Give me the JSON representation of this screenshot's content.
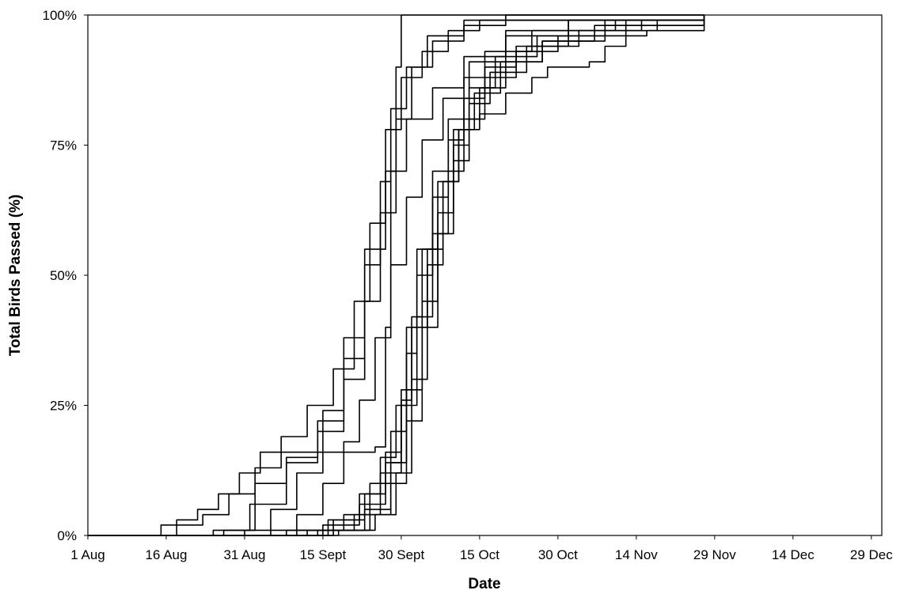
{
  "chart_data": {
    "type": "line",
    "title": "",
    "xlabel": "Date",
    "ylabel": "Total Birds Passed (%)",
    "x_type": "date",
    "xlim": [
      "2000-08-01",
      "2000-12-31"
    ],
    "ylim": [
      0,
      100
    ],
    "x_ticks": [
      {
        "date": "2000-08-01",
        "label": "1 Aug"
      },
      {
        "date": "2000-08-16",
        "label": "16 Aug"
      },
      {
        "date": "2000-08-31",
        "label": "31 Aug"
      },
      {
        "date": "2000-09-15",
        "label": "15 Sept"
      },
      {
        "date": "2000-09-30",
        "label": "30 Sept"
      },
      {
        "date": "2000-10-15",
        "label": "15 Oct"
      },
      {
        "date": "2000-10-30",
        "label": "30 Oct"
      },
      {
        "date": "2000-11-14",
        "label": "14 Nov"
      },
      {
        "date": "2000-11-29",
        "label": "29 Nov"
      },
      {
        "date": "2000-12-14",
        "label": "14 Dec"
      },
      {
        "date": "2000-12-29",
        "label": "29 Dec"
      }
    ],
    "y_ticks": [
      {
        "value": 0,
        "label": "0%"
      },
      {
        "value": 25,
        "label": "25%"
      },
      {
        "value": 50,
        "label": "50%"
      },
      {
        "value": 75,
        "label": "75%"
      },
      {
        "value": 100,
        "label": "100%"
      }
    ],
    "grid": false,
    "legend": "none",
    "series_color": "#000000",
    "series": [
      {
        "points": [
          [
            "2000-08-13",
            0
          ],
          [
            "2000-08-15",
            2
          ],
          [
            "2000-08-18",
            3
          ],
          [
            "2000-08-22",
            5
          ],
          [
            "2000-08-26",
            8
          ],
          [
            "2000-08-30",
            12
          ],
          [
            "2000-09-03",
            16
          ],
          [
            "2000-09-08",
            16
          ],
          [
            "2000-09-14",
            16
          ],
          [
            "2000-09-20",
            16
          ],
          [
            "2000-09-25",
            17
          ],
          [
            "2000-09-27",
            40
          ],
          [
            "2000-09-28",
            70
          ],
          [
            "2000-09-29",
            90
          ],
          [
            "2000-09-30",
            100
          ],
          [
            "2000-11-27",
            100
          ]
        ]
      },
      {
        "points": [
          [
            "2000-08-14",
            0
          ],
          [
            "2000-08-18",
            2
          ],
          [
            "2000-08-23",
            4
          ],
          [
            "2000-08-28",
            8
          ],
          [
            "2000-09-02",
            13
          ],
          [
            "2000-09-07",
            19
          ],
          [
            "2000-09-12",
            25
          ],
          [
            "2000-09-17",
            32
          ],
          [
            "2000-09-21",
            45
          ],
          [
            "2000-09-24",
            60
          ],
          [
            "2000-09-27",
            78
          ],
          [
            "2000-09-30",
            88
          ],
          [
            "2000-10-04",
            93
          ],
          [
            "2000-10-09",
            97
          ],
          [
            "2000-10-15",
            99
          ],
          [
            "2000-11-27",
            100
          ]
        ]
      },
      {
        "points": [
          [
            "2000-08-20",
            0
          ],
          [
            "2000-08-27",
            1
          ],
          [
            "2000-09-02",
            10
          ],
          [
            "2000-09-08",
            15
          ],
          [
            "2000-09-14",
            20
          ],
          [
            "2000-09-19",
            30
          ],
          [
            "2000-09-23",
            45
          ],
          [
            "2000-09-26",
            62
          ],
          [
            "2000-09-29",
            80
          ],
          [
            "2000-10-02",
            90
          ],
          [
            "2000-10-06",
            95
          ],
          [
            "2000-10-12",
            98
          ],
          [
            "2000-10-20",
            100
          ],
          [
            "2000-11-27",
            100
          ]
        ]
      },
      {
        "points": [
          [
            "2000-08-18",
            0
          ],
          [
            "2000-08-25",
            1
          ],
          [
            "2000-09-01",
            6
          ],
          [
            "2000-09-08",
            14
          ],
          [
            "2000-09-14",
            22
          ],
          [
            "2000-09-19",
            34
          ],
          [
            "2000-09-23",
            52
          ],
          [
            "2000-09-26",
            68
          ],
          [
            "2000-09-28",
            82
          ],
          [
            "2000-10-01",
            90
          ],
          [
            "2000-10-05",
            96
          ],
          [
            "2000-10-12",
            99
          ],
          [
            "2000-11-27",
            100
          ]
        ]
      },
      {
        "points": [
          [
            "2000-08-25",
            0
          ],
          [
            "2000-08-31",
            1
          ],
          [
            "2000-09-05",
            5
          ],
          [
            "2000-09-10",
            12
          ],
          [
            "2000-09-15",
            24
          ],
          [
            "2000-09-19",
            38
          ],
          [
            "2000-09-23",
            55
          ],
          [
            "2000-09-27",
            70
          ],
          [
            "2000-10-01",
            80
          ],
          [
            "2000-10-06",
            86
          ],
          [
            "2000-10-12",
            92
          ],
          [
            "2000-10-20",
            97
          ],
          [
            "2000-11-01",
            99
          ],
          [
            "2000-11-27",
            100
          ]
        ]
      },
      {
        "points": [
          [
            "2000-08-28",
            0
          ],
          [
            "2000-09-05",
            1
          ],
          [
            "2000-09-10",
            4
          ],
          [
            "2000-09-15",
            10
          ],
          [
            "2000-09-19",
            18
          ],
          [
            "2000-09-22",
            26
          ],
          [
            "2000-09-25",
            38
          ],
          [
            "2000-09-28",
            52
          ],
          [
            "2000-10-01",
            65
          ],
          [
            "2000-10-04",
            76
          ],
          [
            "2000-10-08",
            84
          ],
          [
            "2000-10-13",
            91
          ],
          [
            "2000-10-20",
            96
          ],
          [
            "2000-11-01",
            99
          ],
          [
            "2000-11-27",
            100
          ]
        ]
      },
      {
        "points": [
          [
            "2000-08-28",
            0
          ],
          [
            "2000-09-08",
            1
          ],
          [
            "2000-09-16",
            3
          ],
          [
            "2000-09-22",
            8
          ],
          [
            "2000-09-26",
            15
          ],
          [
            "2000-09-29",
            25
          ],
          [
            "2000-10-01",
            40
          ],
          [
            "2000-10-03",
            55
          ],
          [
            "2000-10-06",
            70
          ],
          [
            "2000-10-09",
            80
          ],
          [
            "2000-10-12",
            88
          ],
          [
            "2000-10-16",
            93
          ],
          [
            "2000-10-25",
            97
          ],
          [
            "2000-11-10",
            99
          ],
          [
            "2000-11-27",
            100
          ]
        ]
      },
      {
        "points": [
          [
            "2000-08-30",
            0
          ],
          [
            "2000-09-10",
            1
          ],
          [
            "2000-09-17",
            3
          ],
          [
            "2000-09-23",
            8
          ],
          [
            "2000-09-27",
            16
          ],
          [
            "2000-09-30",
            28
          ],
          [
            "2000-10-02",
            42
          ],
          [
            "2000-10-04",
            55
          ],
          [
            "2000-10-07",
            68
          ],
          [
            "2000-10-10",
            78
          ],
          [
            "2000-10-13",
            86
          ],
          [
            "2000-10-18",
            92
          ],
          [
            "2000-10-26",
            96
          ],
          [
            "2000-11-08",
            99
          ],
          [
            "2000-11-27",
            100
          ]
        ]
      },
      {
        "points": [
          [
            "2000-09-01",
            0
          ],
          [
            "2000-09-12",
            1
          ],
          [
            "2000-09-19",
            4
          ],
          [
            "2000-09-24",
            10
          ],
          [
            "2000-09-28",
            20
          ],
          [
            "2000-10-01",
            35
          ],
          [
            "2000-10-03",
            50
          ],
          [
            "2000-10-06",
            65
          ],
          [
            "2000-10-09",
            76
          ],
          [
            "2000-10-12",
            84
          ],
          [
            "2000-10-16",
            90
          ],
          [
            "2000-10-22",
            94
          ],
          [
            "2000-11-01",
            97
          ],
          [
            "2000-11-15",
            99
          ],
          [
            "2000-11-27",
            100
          ]
        ]
      },
      {
        "points": [
          [
            "2000-09-02",
            0
          ],
          [
            "2000-09-14",
            1
          ],
          [
            "2000-09-21",
            4
          ],
          [
            "2000-09-26",
            12
          ],
          [
            "2000-09-30",
            25
          ],
          [
            "2000-10-03",
            42
          ],
          [
            "2000-10-06",
            58
          ],
          [
            "2000-10-09",
            70
          ],
          [
            "2000-10-12",
            80
          ],
          [
            "2000-10-16",
            88
          ],
          [
            "2000-10-22",
            93
          ],
          [
            "2000-10-30",
            96
          ],
          [
            "2000-11-12",
            99
          ],
          [
            "2000-11-27",
            100
          ]
        ]
      },
      {
        "points": [
          [
            "2000-09-03",
            0
          ],
          [
            "2000-09-15",
            2
          ],
          [
            "2000-09-22",
            6
          ],
          [
            "2000-09-27",
            14
          ],
          [
            "2000-09-30",
            26
          ],
          [
            "2000-10-02",
            40
          ],
          [
            "2000-10-05",
            55
          ],
          [
            "2000-10-08",
            68
          ],
          [
            "2000-10-11",
            78
          ],
          [
            "2000-10-14",
            85
          ],
          [
            "2000-10-19",
            91
          ],
          [
            "2000-10-27",
            95
          ],
          [
            "2000-11-08",
            98
          ],
          [
            "2000-11-27",
            100
          ]
        ]
      },
      {
        "points": [
          [
            "2000-09-04",
            0
          ],
          [
            "2000-09-16",
            1
          ],
          [
            "2000-09-23",
            5
          ],
          [
            "2000-09-28",
            14
          ],
          [
            "2000-10-01",
            28
          ],
          [
            "2000-10-04",
            45
          ],
          [
            "2000-10-07",
            62
          ],
          [
            "2000-10-10",
            75
          ],
          [
            "2000-10-13",
            83
          ],
          [
            "2000-10-17",
            89
          ],
          [
            "2000-10-24",
            94
          ],
          [
            "2000-11-03",
            97
          ],
          [
            "2000-11-18",
            99
          ],
          [
            "2000-11-27",
            100
          ]
        ]
      },
      {
        "points": [
          [
            "2000-09-05",
            0
          ],
          [
            "2000-09-17",
            1
          ],
          [
            "2000-09-24",
            4
          ],
          [
            "2000-09-28",
            10
          ],
          [
            "2000-10-01",
            22
          ],
          [
            "2000-10-04",
            40
          ],
          [
            "2000-10-07",
            58
          ],
          [
            "2000-10-10",
            72
          ],
          [
            "2000-10-13",
            80
          ],
          [
            "2000-10-15",
            81
          ],
          [
            "2000-10-20",
            85
          ],
          [
            "2000-10-25",
            88
          ],
          [
            "2000-10-28",
            90
          ],
          [
            "2000-11-05",
            91
          ],
          [
            "2000-11-08",
            94
          ],
          [
            "2000-11-12",
            96
          ],
          [
            "2000-11-16",
            97
          ],
          [
            "2000-11-26",
            97
          ],
          [
            "2000-11-27",
            100
          ]
        ]
      },
      {
        "points": [
          [
            "2000-09-06",
            0
          ],
          [
            "2000-09-18",
            1
          ],
          [
            "2000-09-25",
            4
          ],
          [
            "2000-09-29",
            12
          ],
          [
            "2000-10-02",
            30
          ],
          [
            "2000-10-05",
            52
          ],
          [
            "2000-10-08",
            68
          ],
          [
            "2000-10-11",
            78
          ],
          [
            "2000-10-15",
            86
          ],
          [
            "2000-10-20",
            91
          ],
          [
            "2000-10-27",
            95
          ],
          [
            "2000-11-06",
            98
          ],
          [
            "2000-11-27",
            100
          ]
        ]
      }
    ]
  }
}
